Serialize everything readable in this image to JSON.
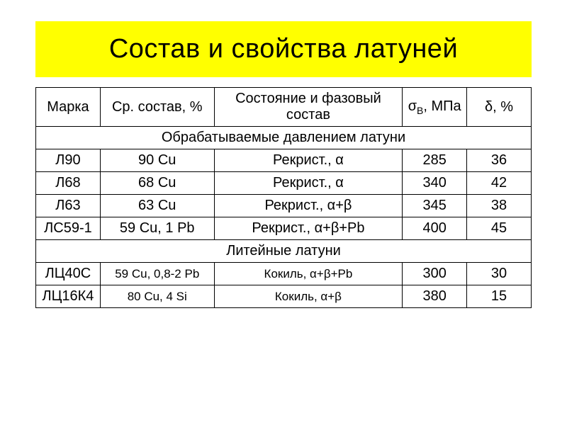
{
  "title": "Состав и свойства латуней",
  "headers": {
    "mark": "Марка",
    "composition": "Ср. состав, %",
    "state": "Состояние и фазовый состав",
    "sigma_html": "σ<sub>В</sub>, МПа",
    "delta": "δ, %"
  },
  "columns": [
    {
      "key": "mark",
      "width_pct": 13
    },
    {
      "key": "comp",
      "width_pct": 23
    },
    {
      "key": "state",
      "width_pct": 38
    },
    {
      "key": "sigma",
      "width_pct": 13
    },
    {
      "key": "delta",
      "width_pct": 13
    }
  ],
  "sections": [
    {
      "title": "Обрабатываемые давлением латуни",
      "title_fontsize": 20,
      "rows": [
        {
          "mark": "Л90",
          "comp": "90 Cu",
          "state": "Рекрист., α",
          "sigma": "285",
          "delta": "36",
          "fontsize": 20
        },
        {
          "mark": "Л68",
          "comp": "68 Cu",
          "state": "Рекрист., α",
          "sigma": "340",
          "delta": "42",
          "fontsize": 20
        },
        {
          "mark": "Л63",
          "comp": "63 Cu",
          "state": "Рекрист., α+β",
          "sigma": "345",
          "delta": "38",
          "fontsize": 20
        },
        {
          "mark": "ЛС59-1",
          "comp": "59 Cu, 1 Pb",
          "state": "Рекрист., α+β+Pb",
          "sigma": "400",
          "delta": "45",
          "fontsize": 20
        }
      ]
    },
    {
      "title": "Литейные латуни",
      "title_fontsize": 20,
      "rows": [
        {
          "mark": "ЛЦ40С",
          "comp": "59 Cu, 0,8-2 Pb",
          "comp_fontsize": 17,
          "state": "Кокиль, α+β+Pb",
          "state_fontsize": 17,
          "sigma": "300",
          "delta": "30",
          "fontsize": 20
        },
        {
          "mark": "ЛЦ16К4",
          "comp": "80 Cu, 4 Si",
          "comp_fontsize": 17,
          "state": "Кокиль, α+β",
          "state_fontsize": 17,
          "sigma": "380",
          "delta": "15",
          "fontsize": 20
        }
      ]
    }
  ],
  "styling": {
    "title_bg": "#ffff00",
    "title_color": "#000000",
    "title_fontsize": 38,
    "border_color": "#000000",
    "cell_text_color": "#000000",
    "background": "#ffffff",
    "header_fontsize": 20,
    "delta_header_fontsize": 15
  }
}
